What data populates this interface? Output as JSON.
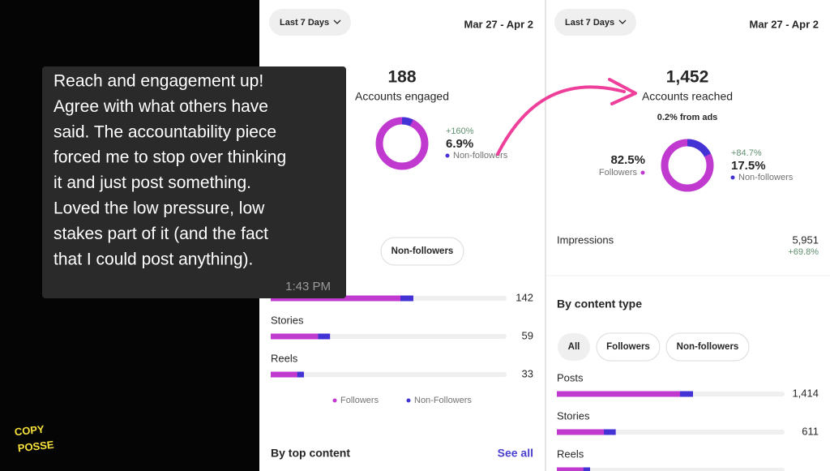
{
  "chat": {
    "lines": [
      "Reach and engagement up!",
      "Agree with what others have",
      "said. The accountability piece",
      "forced me to stop over thinking",
      "it and just post something.",
      "Loved the low pressure, low",
      "stakes part of it (and the fact",
      "that I could post anything)."
    ],
    "time": "1:43 PM"
  },
  "logo": {
    "lines": [
      "COPY",
      "POSSE"
    ]
  },
  "engaged_panel": {
    "range": "Last 7 Days",
    "dates": "Mar 27 - Apr 2",
    "total": "188",
    "metric": "Accounts engaged",
    "non_followers": {
      "change": "+160%",
      "value": 6.9,
      "label": "6.9%",
      "name": "Non-followers"
    },
    "filters": [
      "Non-followers"
    ],
    "rows": [
      {
        "name": null,
        "value": 142
      },
      {
        "name": "Stories",
        "value": 59
      },
      {
        "name": "Reels",
        "value": 33
      }
    ],
    "legend": [
      "Followers",
      "Non-Followers"
    ],
    "section": "By top content",
    "link": "See all"
  },
  "reached_panel": {
    "range": "Last 7 Days",
    "dates": "Mar 27 - Apr 2",
    "total": "1,452",
    "metric": "Accounts reached",
    "ads": "0.2% from ads",
    "followers": {
      "value": 82.5,
      "label": "82.5%",
      "name": "Followers"
    },
    "non_followers": {
      "change": "+84.7%",
      "value": 17.5,
      "label": "17.5%",
      "name": "Non-followers"
    },
    "impressions": {
      "name": "Impressions",
      "value": "5,951",
      "change": "+69.8%"
    },
    "section": "By content type",
    "filters": [
      "All",
      "Followers",
      "Non-followers"
    ],
    "rows": [
      {
        "name": "Posts",
        "value": 1414,
        "label": "1,414"
      },
      {
        "name": "Stories",
        "value": 611,
        "label": "611"
      },
      {
        "name": "Reels",
        "value": 345
      }
    ]
  }
}
